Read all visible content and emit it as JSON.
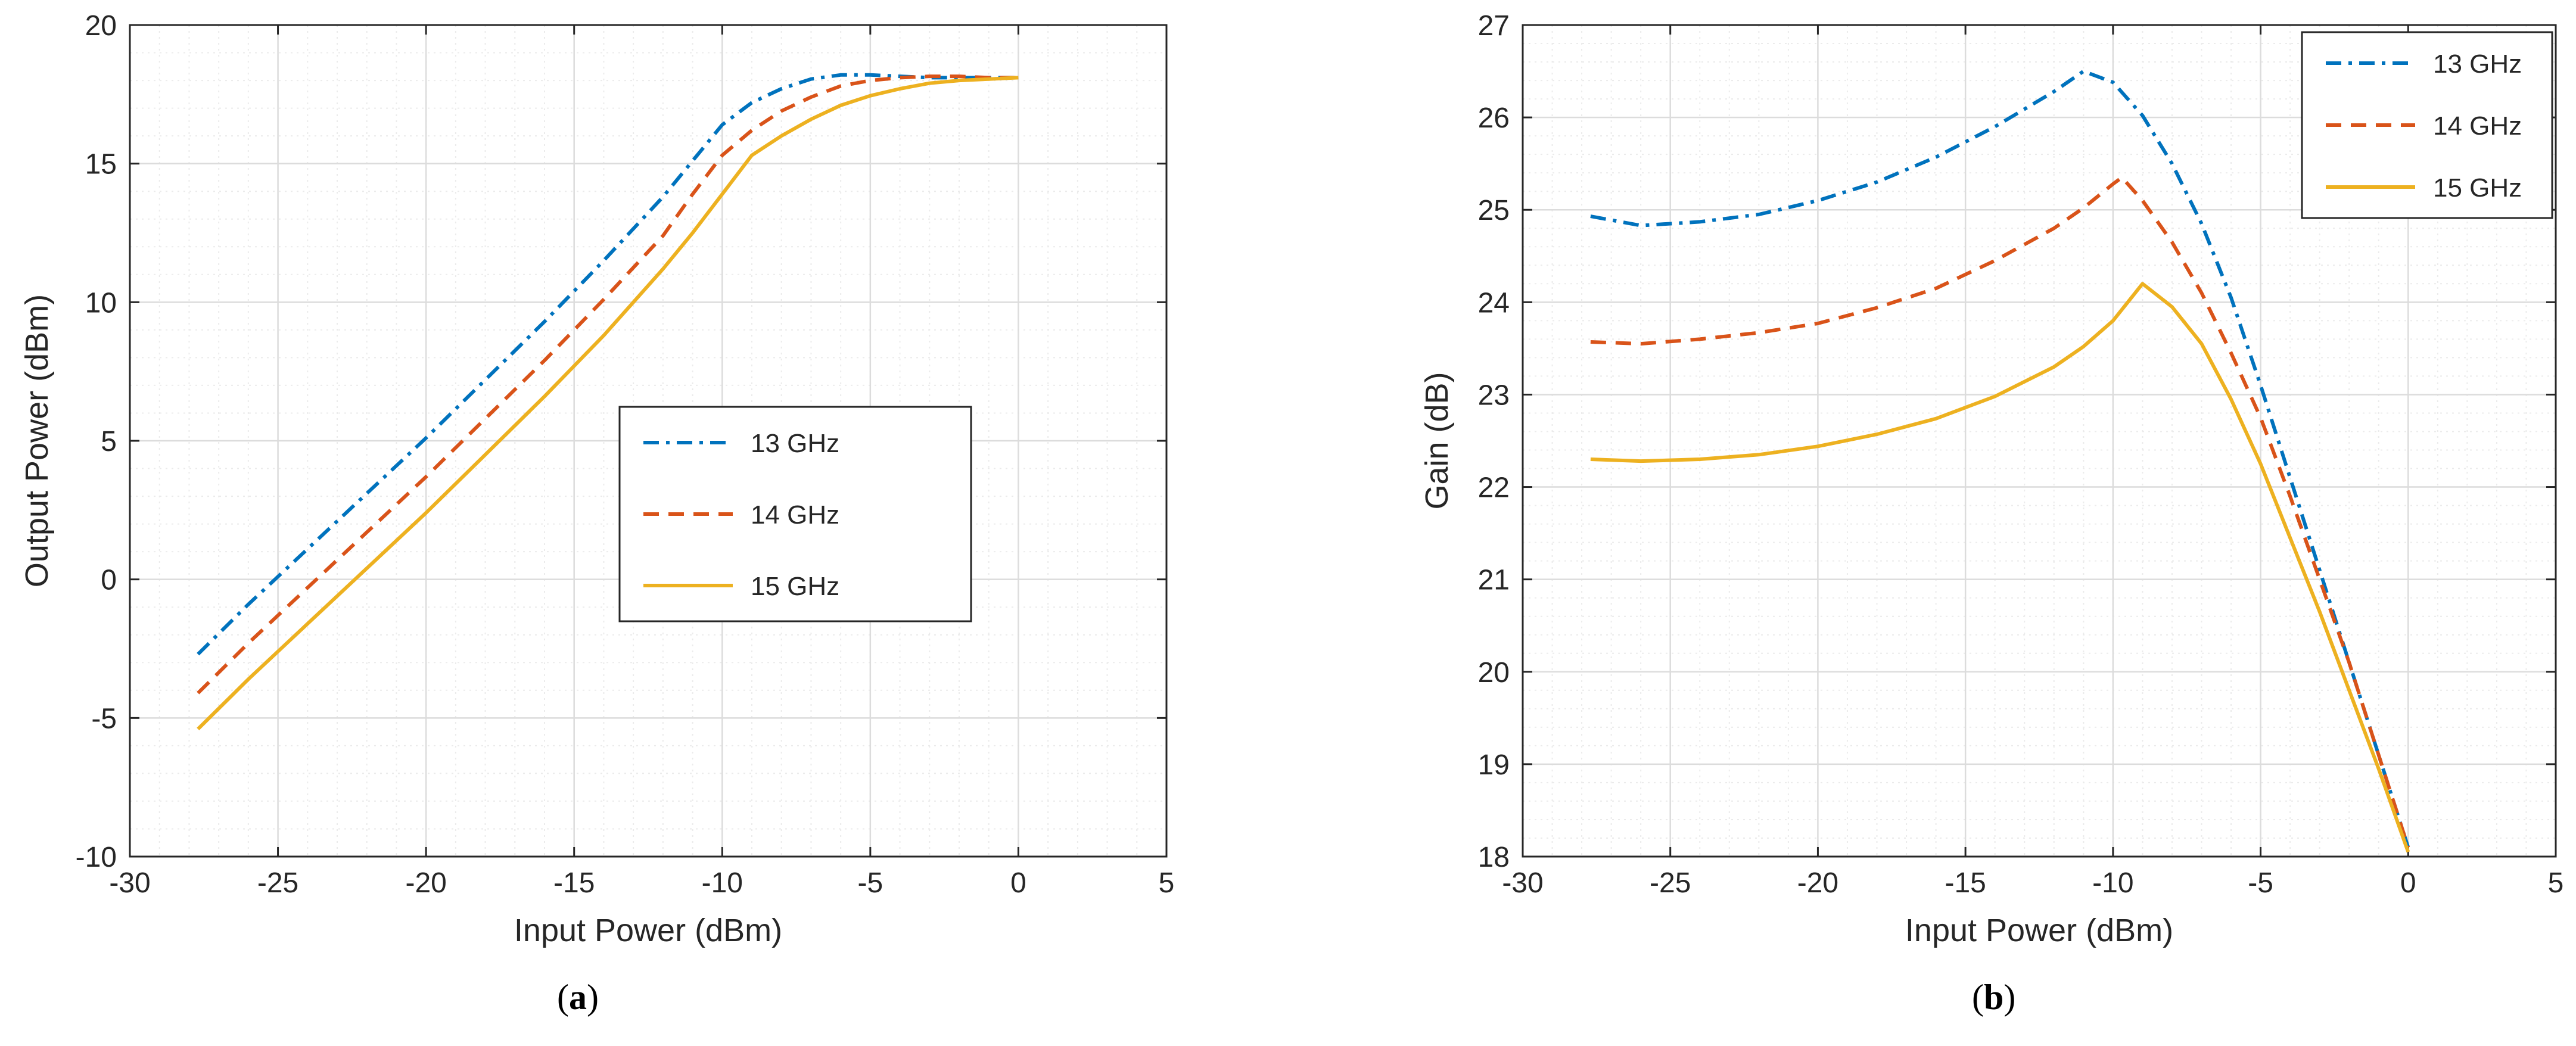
{
  "colors": {
    "blue": "#0072BD",
    "orange": "#D95319",
    "yellow": "#EDB120",
    "grid_major": "#dcdcdc",
    "grid_minor": "#ebebeb",
    "axis": "#262626"
  },
  "chart_data": [
    {
      "type": "line",
      "panel_label": "a",
      "xlabel": "Input Power (dBm)",
      "ylabel": "Output Power (dBm)",
      "xlim": [
        -30,
        5
      ],
      "ylim": [
        -10,
        20
      ],
      "xticks": [
        -30,
        -25,
        -20,
        -15,
        -10,
        -5,
        0,
        5
      ],
      "yticks": [
        -10,
        -5,
        0,
        5,
        10,
        15,
        20
      ],
      "grid": "on",
      "legend_placement": "center-right",
      "series": [
        {
          "name": "13 GHz",
          "color": "#0072BD",
          "style": "dashdot",
          "x": [
            -27.7,
            -26,
            -24,
            -22,
            -20,
            -18,
            -16,
            -14,
            -12,
            -11,
            -10,
            -9,
            -8,
            -7,
            -6,
            -5,
            -4,
            -3,
            -2,
            -1,
            0
          ],
          "y": [
            -2.7,
            -0.9,
            1.1,
            3.1,
            5.1,
            7.2,
            9.3,
            11.5,
            13.8,
            15.1,
            16.4,
            17.2,
            17.7,
            18.05,
            18.2,
            18.2,
            18.15,
            18.1,
            18.1,
            18.1,
            18.1
          ]
        },
        {
          "name": "14 GHz",
          "color": "#D95319",
          "style": "dashed",
          "x": [
            -27.7,
            -26,
            -24,
            -22,
            -20,
            -18,
            -16,
            -14,
            -12,
            -11,
            -10,
            -9,
            -8,
            -7,
            -6,
            -5,
            -4,
            -3,
            -2,
            -1,
            0
          ],
          "y": [
            -4.1,
            -2.3,
            -0.3,
            1.7,
            3.7,
            5.8,
            7.9,
            10.1,
            12.4,
            13.9,
            15.3,
            16.2,
            16.9,
            17.4,
            17.8,
            18.0,
            18.1,
            18.15,
            18.15,
            18.1,
            18.1
          ]
        },
        {
          "name": "15 GHz",
          "color": "#EDB120",
          "style": "solid",
          "x": [
            -27.7,
            -26,
            -24,
            -22,
            -20,
            -18,
            -16,
            -14,
            -12,
            -11,
            -10,
            -9,
            -8,
            -7,
            -6,
            -5,
            -4,
            -3,
            -2,
            -1,
            0
          ],
          "y": [
            -5.4,
            -3.6,
            -1.6,
            0.4,
            2.4,
            4.5,
            6.6,
            8.8,
            11.2,
            12.5,
            13.9,
            15.3,
            16.0,
            16.6,
            17.1,
            17.45,
            17.7,
            17.9,
            18.0,
            18.05,
            18.1
          ]
        }
      ]
    },
    {
      "type": "line",
      "panel_label": "b",
      "xlabel": "Input Power (dBm)",
      "ylabel": "Gain (dB)",
      "xlim": [
        -30,
        5
      ],
      "ylim": [
        18,
        27
      ],
      "xticks": [
        -30,
        -25,
        -20,
        -15,
        -10,
        -5,
        0,
        5
      ],
      "yticks": [
        18,
        19,
        20,
        21,
        22,
        23,
        24,
        25,
        26,
        27
      ],
      "grid": "on",
      "legend_placement": "top-right",
      "series": [
        {
          "name": "13 GHz",
          "color": "#0072BD",
          "style": "dashdot",
          "x": [
            -27.7,
            -26,
            -24,
            -22,
            -20,
            -18,
            -16,
            -14,
            -12,
            -11,
            -10,
            -9,
            -8,
            -7,
            -6,
            -5,
            -4,
            -3,
            -2,
            -1,
            0
          ],
          "y": [
            24.93,
            24.83,
            24.87,
            24.95,
            25.1,
            25.3,
            25.57,
            25.9,
            26.28,
            26.5,
            26.38,
            26.02,
            25.5,
            24.85,
            24.05,
            23.1,
            22.1,
            21.1,
            20.1,
            19.1,
            18.1
          ]
        },
        {
          "name": "14 GHz",
          "color": "#D95319",
          "style": "dashed",
          "x": [
            -27.7,
            -26,
            -24,
            -22,
            -20,
            -18,
            -16,
            -14,
            -12,
            -11,
            -10,
            -9.7,
            -9,
            -8,
            -7,
            -6,
            -5,
            -4,
            -3,
            -2,
            -1,
            0
          ],
          "y": [
            23.57,
            23.55,
            23.6,
            23.67,
            23.77,
            23.94,
            24.15,
            24.45,
            24.8,
            25.02,
            25.28,
            25.35,
            25.1,
            24.65,
            24.1,
            23.45,
            22.75,
            21.9,
            21.0,
            20.1,
            19.1,
            18.1
          ]
        },
        {
          "name": "15 GHz",
          "color": "#EDB120",
          "style": "solid",
          "x": [
            -27.7,
            -26,
            -24,
            -22,
            -20,
            -18,
            -16,
            -14,
            -12,
            -11,
            -10,
            -9,
            -8,
            -7,
            -6,
            -5,
            -4,
            -3,
            -2,
            -1,
            0
          ],
          "y": [
            22.3,
            22.28,
            22.3,
            22.35,
            22.44,
            22.57,
            22.74,
            22.98,
            23.3,
            23.52,
            23.8,
            24.2,
            23.95,
            23.55,
            22.95,
            22.25,
            21.45,
            20.65,
            19.8,
            18.95,
            18.05
          ]
        }
      ]
    }
  ],
  "captions": {
    "a": "a",
    "b": "b"
  }
}
